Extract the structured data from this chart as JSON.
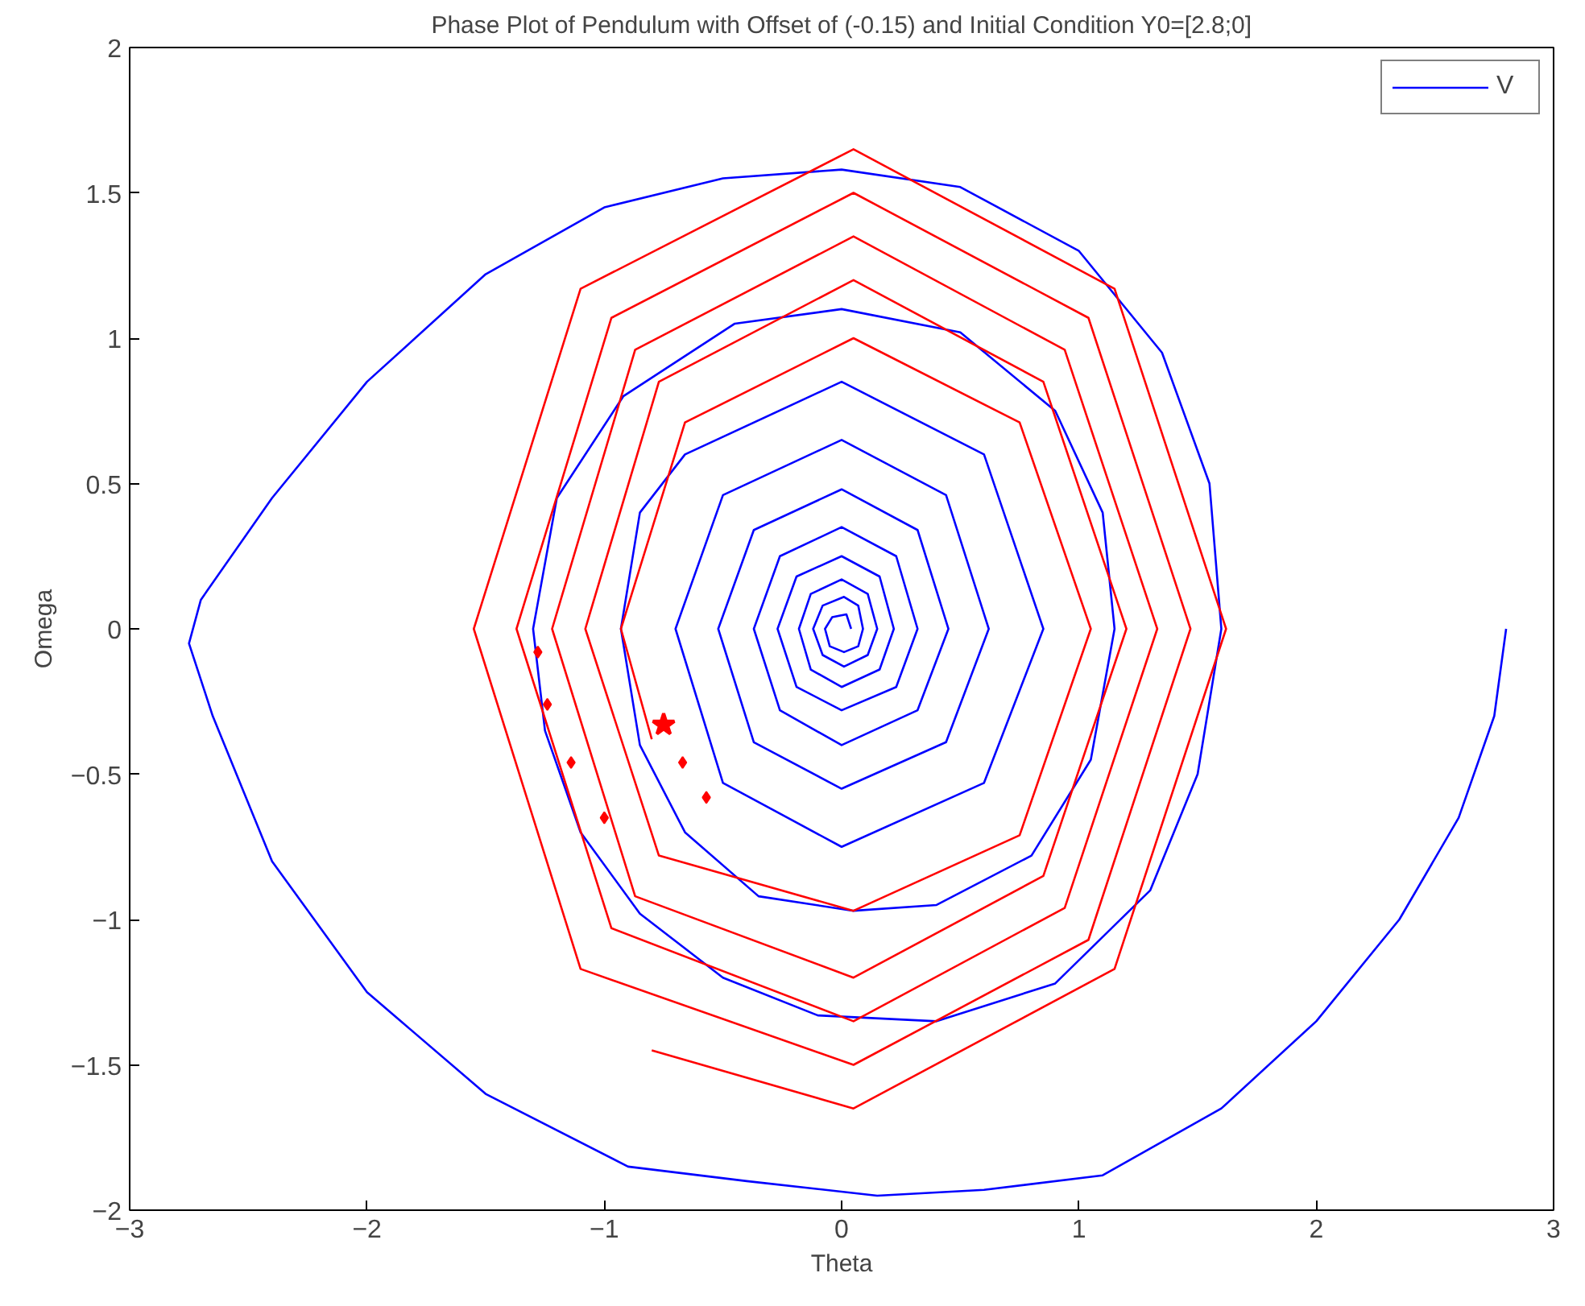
{
  "chart_data": {
    "type": "line",
    "title": "Phase Plot of Pendulum with Offset of (-0.15) and Initial Condition Y0=[2.8;0]",
    "xlabel": "Theta",
    "ylabel": "Omega",
    "xlim": [
      -3,
      3
    ],
    "ylim": [
      -2,
      2
    ],
    "xticks": [
      -3,
      -2,
      -1,
      0,
      1,
      2,
      3
    ],
    "yticks": [
      -2,
      -1.5,
      -1,
      -0.5,
      0,
      0.5,
      1,
      1.5,
      2
    ],
    "grid": false,
    "legend": "top right",
    "line_style": "solid",
    "series": [
      {
        "name": "V",
        "color": "#0000ff",
        "marker": "none",
        "x": [
          2.8,
          2.75,
          2.6,
          2.35,
          2.0,
          1.6,
          1.1,
          0.6,
          0.15,
          -0.4,
          -0.9,
          -1.5,
          -2.0,
          -2.4,
          -2.65,
          -2.75,
          -2.7,
          -2.4,
          -2.0,
          -1.5,
          -1.0,
          -0.5,
          0,
          0.5,
          1.0,
          1.35,
          1.55,
          1.6,
          1.5,
          1.3,
          0.9,
          0.4,
          -0.1,
          -0.5,
          -0.85,
          -1.1,
          -1.25,
          -1.3,
          -1.2,
          -0.92,
          -0.45,
          0,
          0.5,
          0.9,
          1.1,
          1.15,
          1.05,
          0.8,
          0.4,
          0.05,
          -0.35,
          -0.66,
          -0.85,
          -0.93,
          -0.85,
          -0.66,
          0,
          0.6,
          0.85,
          0.6,
          0,
          -0.5,
          -0.7,
          -0.5,
          0,
          0.44,
          0.62,
          0.44,
          0,
          -0.37,
          -0.52,
          -0.37,
          0,
          0.32,
          0.45,
          0.32,
          0,
          -0.26,
          -0.37,
          -0.26,
          0,
          0.23,
          0.32,
          0.23,
          0,
          -0.19,
          -0.27,
          -0.19,
          0,
          0.16,
          0.22,
          0.16,
          0,
          -0.13,
          -0.18,
          -0.13,
          0,
          0.11,
          0.15,
          0.11,
          0.01,
          -0.08,
          -0.12,
          -0.08,
          0.01,
          0.07,
          0.09,
          0.07,
          0.01,
          -0.05,
          -0.07,
          -0.04,
          0.02,
          0.04
        ],
        "values": [
          0,
          -0.3,
          -0.65,
          -1.0,
          -1.35,
          -1.65,
          -1.88,
          -1.93,
          -1.95,
          -1.9,
          -1.85,
          -1.6,
          -1.25,
          -0.8,
          -0.3,
          -0.05,
          0.1,
          0.45,
          0.85,
          1.22,
          1.45,
          1.55,
          1.58,
          1.52,
          1.3,
          0.95,
          0.5,
          0,
          -0.5,
          -0.9,
          -1.22,
          -1.35,
          -1.33,
          -1.2,
          -0.98,
          -0.7,
          -0.35,
          0,
          0.45,
          0.8,
          1.05,
          1.1,
          1.02,
          0.75,
          0.4,
          0,
          -0.45,
          -0.78,
          -0.95,
          -0.97,
          -0.92,
          -0.7,
          -0.4,
          0,
          0.4,
          0.6,
          0.85,
          0.6,
          0,
          -0.53,
          -0.75,
          -0.53,
          0,
          0.46,
          0.65,
          0.46,
          0,
          -0.39,
          -0.55,
          -0.39,
          0,
          0.34,
          0.48,
          0.34,
          0,
          -0.28,
          -0.4,
          -0.28,
          0,
          0.25,
          0.35,
          0.25,
          0,
          -0.2,
          -0.28,
          -0.2,
          0,
          0.18,
          0.25,
          0.18,
          0,
          -0.14,
          -0.2,
          -0.14,
          0,
          0.12,
          0.17,
          0.12,
          0,
          -0.09,
          -0.13,
          -0.09,
          0,
          0.08,
          0.11,
          0.08,
          0,
          -0.06,
          -0.08,
          -0.06,
          0,
          0.04,
          0.05,
          0
        ]
      },
      {
        "color": "#ff0000",
        "marker": "none",
        "x": [
          -0.8,
          -0.93,
          -0.66,
          0.05,
          0.75,
          1.05,
          0.75,
          0.05,
          -0.77,
          -1.08,
          -0.77,
          0.05,
          0.85,
          1.2,
          0.85,
          0.05,
          -0.87,
          -1.22,
          -0.87,
          0.05,
          0.94,
          1.33,
          0.94,
          0.05,
          -0.97,
          -1.37,
          -0.97,
          0.05,
          1.04,
          1.47,
          1.04,
          0.05,
          -1.1,
          -1.55,
          -1.1,
          0.05,
          1.15,
          1.62,
          1.15,
          0.05,
          -0.8
        ],
        "values": [
          -0.38,
          0,
          0.71,
          1.0,
          0.71,
          0,
          -0.71,
          -0.97,
          -0.78,
          0,
          0.85,
          1.2,
          0.85,
          0,
          -0.85,
          -1.2,
          -0.92,
          0,
          0.96,
          1.35,
          0.96,
          0,
          -0.96,
          -1.35,
          -1.03,
          0,
          1.07,
          1.5,
          1.07,
          0,
          -1.07,
          -1.5,
          -1.17,
          0,
          1.17,
          1.65,
          1.17,
          0,
          -1.17,
          -1.65,
          -1.45
        ]
      },
      {
        "color": "#ff0000",
        "type": "scatter",
        "marker": "diamond",
        "x": [
          -1.28,
          -1.24,
          -1.14,
          -1.0,
          -0.67,
          -0.57
        ],
        "values": [
          -0.08,
          -0.26,
          -0.46,
          -0.65,
          -0.46,
          -0.58
        ]
      },
      {
        "color": "#ff0000",
        "type": "scatter",
        "marker": "star",
        "x": [
          -0.75
        ],
        "values": [
          -0.33
        ]
      }
    ]
  }
}
